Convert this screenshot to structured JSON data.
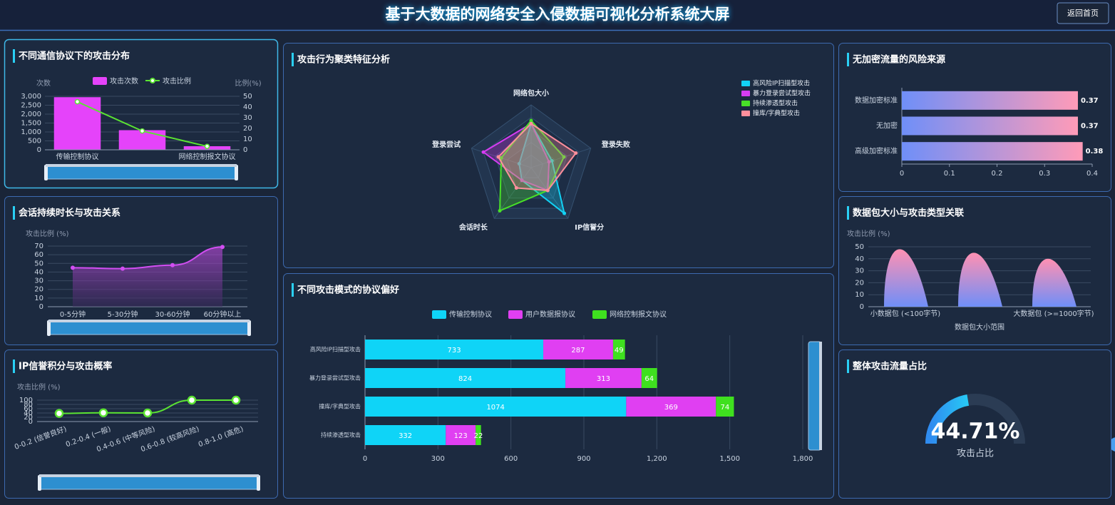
{
  "header": {
    "title": "基于大数据的网络安全入侵数据可视化分析系统大屏",
    "button": "返回首页"
  },
  "chart_data": [
    {
      "type": "combo",
      "title": "不同通信协议下的攻击分布",
      "categories": [
        "传输控制协议",
        null,
        "网络控制报文协议"
      ],
      "series": [
        {
          "name": "攻击次数",
          "type": "bar",
          "color": "#e543fa",
          "values": [
            2950,
            1100,
            200
          ]
        },
        {
          "name": "攻击比例",
          "type": "line",
          "axis": "y2",
          "color": "#5be432",
          "values": [
            44.9,
            17.6,
            3.2
          ]
        }
      ],
      "ylabel": "次数",
      "y2label": "比例(%)",
      "ylim": [
        0,
        3000
      ],
      "yticks": [
        0,
        500,
        {
          "value": 1000,
          "label": "1,000"
        },
        {
          "value": 1500,
          "label": "1,500"
        },
        {
          "value": 2000,
          "label": "2,000"
        },
        {
          "value": 2500,
          "label": "2,500"
        },
        {
          "value": 3000,
          "label": "3,000"
        }
      ],
      "y2lim": [
        0,
        50
      ],
      "y2ticks": [
        0,
        10,
        20,
        30,
        40,
        50
      ],
      "grid": true
    },
    {
      "type": "area",
      "title": "会话持续时长与攻击关系",
      "categories": [
        "0-5分钟",
        "5-30分钟",
        "30-60分钟",
        "60分钟以上"
      ],
      "values": [
        45,
        44,
        48,
        69
      ],
      "color": "#d24ef2",
      "ylabel": "攻击比例 (%)",
      "ylim": [
        0,
        70
      ],
      "yticks": [
        0,
        10,
        20,
        30,
        40,
        50,
        60,
        70
      ],
      "grid": true
    },
    {
      "type": "line",
      "title": "IP信誉积分与攻击概率",
      "categories": [
        "0-0.2 (信誉良好)",
        "0.2-0.4 (一般)",
        "0.4-0.6 (中等风险)",
        "0.6-0.8 (较高风险)",
        "0.8-1.0 (高危)"
      ],
      "values": [
        38,
        41,
        40,
        100,
        100
      ],
      "color": "#5be432",
      "ylabel": "攻击比例 (%)",
      "ylim": [
        0,
        100
      ],
      "yticks": [
        0,
        20,
        40,
        60,
        80,
        100
      ],
      "grid": true
    },
    {
      "type": "radar",
      "title": "攻击行为聚类特征分析",
      "indicators": [
        "网络包大小",
        "登录失败",
        "IP信誉分",
        "会话时长",
        "登录尝试"
      ],
      "rlim": [
        0,
        1
      ],
      "series": [
        {
          "name": "高风险IP扫描型攻击",
          "color": "#12d2f5",
          "values": [
            0.7,
            0.35,
            0.9,
            0.25,
            0.2
          ]
        },
        {
          "name": "暴力登录尝试型攻击",
          "color": "#d63cf2",
          "values": [
            0.7,
            0.3,
            0.45,
            0.25,
            0.8
          ]
        },
        {
          "name": "持续渗透型攻击",
          "color": "#48e028",
          "values": [
            0.75,
            0.55,
            0.45,
            0.85,
            0.5
          ]
        },
        {
          "name": "撞库/字典型攻击",
          "color": "#ff8f9c",
          "values": [
            0.7,
            0.75,
            0.45,
            0.4,
            0.55
          ]
        }
      ],
      "legend": "top-right"
    },
    {
      "type": "bar",
      "title": "不同攻击模式的协议偏好",
      "orientation": "horizontal",
      "stacked": true,
      "categories": [
        "高风险IP扫描型攻击",
        "暴力登录尝试型攻击",
        "撞库/字典型攻击",
        "持续渗透型攻击"
      ],
      "series": [
        {
          "name": "传输控制协议",
          "color": "#0fd4f7",
          "values": [
            733,
            824,
            1074,
            332
          ]
        },
        {
          "name": "用户数据报协议",
          "color": "#e03ff2",
          "values": [
            287,
            313,
            369,
            123
          ]
        },
        {
          "name": "网络控制报文协议",
          "color": "#3fe01f",
          "values": [
            49,
            64,
            74,
            22
          ]
        }
      ],
      "xlim": [
        0,
        1800
      ],
      "xticks": [
        0,
        300,
        600,
        900,
        {
          "value": 1200,
          "label": "1,200"
        },
        {
          "value": 1500,
          "label": "1,500"
        },
        {
          "value": 1800,
          "label": "1,800"
        }
      ],
      "grid": true,
      "legend": "top"
    },
    {
      "type": "bar",
      "title": "无加密流量的风险来源",
      "orientation": "horizontal",
      "categories": [
        "数据加密标准",
        "无加密",
        "高级加密标准"
      ],
      "values": [
        0.37,
        0.37,
        0.38
      ],
      "gradient": [
        "#6f8ff8",
        "#ff9bb8"
      ],
      "xlim": [
        0,
        0.4
      ],
      "xticks": [
        0,
        0.1,
        0.2,
        0.3,
        0.4
      ]
    },
    {
      "type": "pictorial",
      "title": "数据包大小与攻击类型关联",
      "categories": [
        "小数据包 (<100字节)",
        null,
        "大数据包 (>=1000字节)"
      ],
      "values": [
        48,
        45,
        40
      ],
      "gradient": [
        "#ff90b2",
        "#6f8ff8"
      ],
      "ylabel": "攻击比例 (%)",
      "xlabel": "数据包大小范围",
      "ylim": [
        0,
        50
      ],
      "yticks": [
        0,
        10,
        20,
        30,
        40,
        50
      ],
      "grid": true
    },
    {
      "type": "gauge",
      "title": "整体攻击流量占比",
      "value": 44.71,
      "value_label": "44.71%",
      "subtitle": "攻击占比",
      "range": [
        0,
        100
      ],
      "gradient": [
        "#2f8cf0",
        "#27c9f5"
      ]
    }
  ]
}
